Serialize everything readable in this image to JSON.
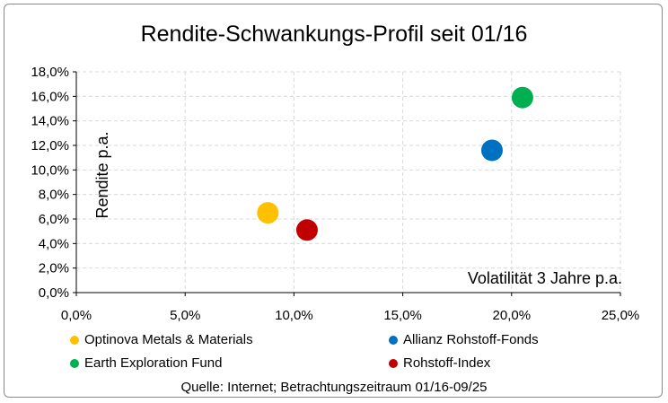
{
  "chart_data": {
    "type": "scatter",
    "title": "Rendite-Schwankungs-Profil  seit 01/16",
    "xlabel": "Volatilität 3 Jahre p.a.",
    "ylabel": "Rendite p.a.",
    "xlim": [
      0,
      25
    ],
    "ylim": [
      0,
      18
    ],
    "x_ticks": [
      "0,0%",
      "5,0%",
      "10,0%",
      "15,0%",
      "20,0%",
      "25,0%"
    ],
    "y_ticks": [
      "0,0%",
      "2,0%",
      "4,0%",
      "6,0%",
      "8,0%",
      "10,0%",
      "12,0%",
      "14,0%",
      "16,0%",
      "18,0%"
    ],
    "grid": true,
    "legend_position": "bottom",
    "series": [
      {
        "name": "Optinova Metals & Materials",
        "color": "#FFC000",
        "x": 8.8,
        "y": 6.5
      },
      {
        "name": "Allianz Rohstoff-Fonds",
        "color": "#0070C0",
        "x": 19.1,
        "y": 11.6
      },
      {
        "name": "Earth Exploration Fund",
        "color": "#00B050",
        "x": 20.5,
        "y": 15.9
      },
      {
        "name": "Rohstoff-Index",
        "color": "#C00000",
        "x": 10.6,
        "y": 5.1
      }
    ],
    "source": "Quelle: Internet; Betrachtungszeitraum 01/16-09/25"
  }
}
